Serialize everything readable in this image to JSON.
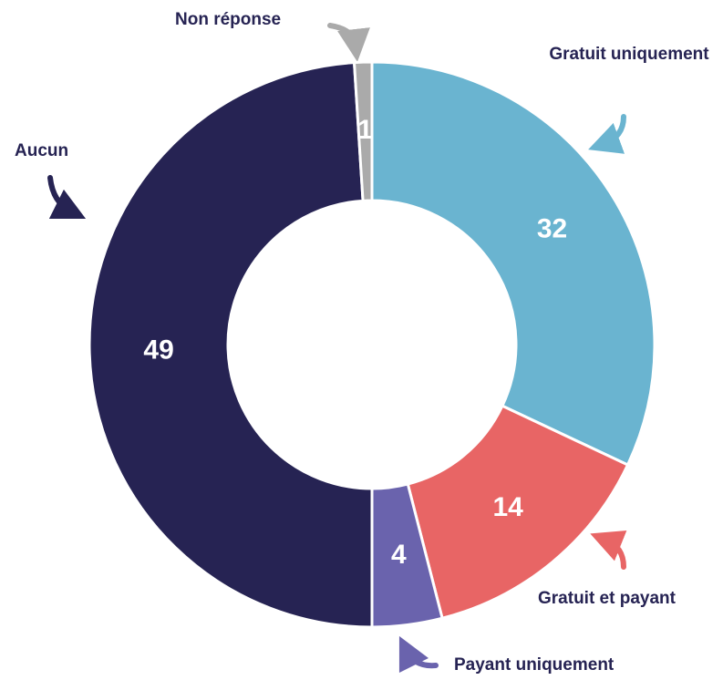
{
  "chart_data": {
    "type": "donut",
    "categories": [
      "Gratuit uniquement",
      "Gratuit et payant",
      "Payant uniquement",
      "Aucun",
      "Non réponse"
    ],
    "values": [
      32,
      14,
      4,
      49,
      1
    ],
    "colors": [
      "#6ab4d0",
      "#e86565",
      "#6a63ad",
      "#262353",
      "#aaaaaa"
    ]
  }
}
